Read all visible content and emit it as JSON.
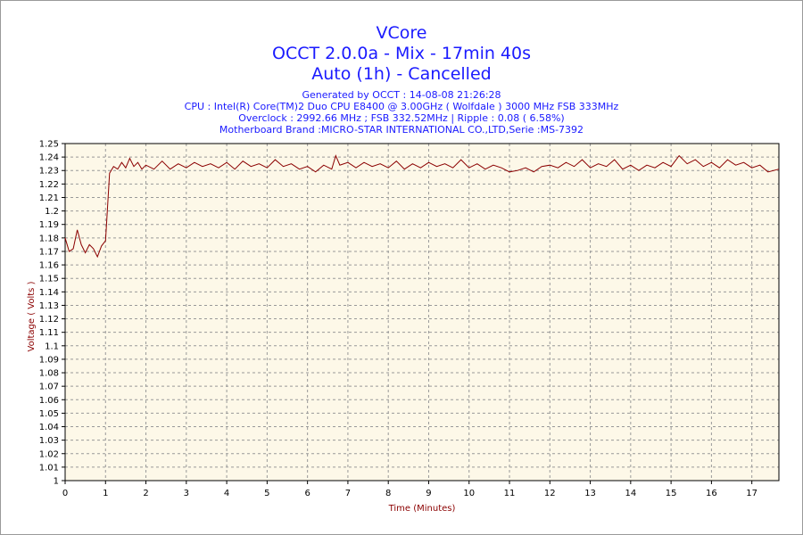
{
  "titles": {
    "line1": "VCore",
    "line2": "OCCT 2.0.0a - Mix - 17min 40s",
    "line3": "Auto (1h) - Cancelled"
  },
  "info": {
    "generated": "Generated by OCCT : 14-08-08 21:26:28",
    "cpu": "CPU : Intel(R) Core(TM)2 Duo CPU E8400 @ 3.00GHz ( Wolfdale ) 3000 MHz FSB 333MHz",
    "overclock": "Overclock : 2992.66 MHz ; FSB 332.52MHz | Ripple : 0.08 ( 6.58%)",
    "motherboard": "Motherboard Brand :MICRO-STAR INTERNATIONAL CO.,LTD,Serie :MS-7392"
  },
  "colors": {
    "plot_bg": "#fdf8e8",
    "line": "#8b0000",
    "grid": "#999999",
    "title": "#1a1aff",
    "axis_title": "#8b0000"
  },
  "chart_data": {
    "type": "line",
    "xlabel": "Time (Minutes)",
    "ylabel": "Voltage ( Volts )",
    "xlim": [
      0,
      17.67
    ],
    "ylim": [
      1,
      1.25
    ],
    "xticks": [
      0,
      1,
      2,
      3,
      4,
      5,
      6,
      7,
      8,
      9,
      10,
      11,
      12,
      13,
      14,
      15,
      16,
      17
    ],
    "yticks": [
      "1",
      "1.01",
      "1.02",
      "1.03",
      "1.04",
      "1.05",
      "1.06",
      "1.07",
      "1.08",
      "1.09",
      "1.1",
      "1.11",
      "1.12",
      "1.13",
      "1.14",
      "1.15",
      "1.16",
      "1.17",
      "1.18",
      "1.19",
      "1.2",
      "1.21",
      "1.22",
      "1.23",
      "1.24",
      "1.25"
    ],
    "grid": true,
    "series": [
      {
        "x": [
          0,
          0.1,
          0.2,
          0.3,
          0.4,
          0.5,
          0.6,
          0.7,
          0.8,
          0.9,
          1.0,
          1.1,
          1.2,
          1.3,
          1.4,
          1.5,
          1.6,
          1.7,
          1.8,
          1.9,
          2.0,
          2.2,
          2.4,
          2.6,
          2.8,
          3.0,
          3.2,
          3.4,
          3.6,
          3.8,
          4.0,
          4.2,
          4.4,
          4.6,
          4.8,
          5.0,
          5.2,
          5.4,
          5.6,
          5.8,
          6.0,
          6.2,
          6.4,
          6.6,
          6.7,
          6.8,
          7.0,
          7.2,
          7.4,
          7.6,
          7.8,
          8.0,
          8.2,
          8.4,
          8.6,
          8.8,
          9.0,
          9.2,
          9.4,
          9.6,
          9.8,
          10.0,
          10.2,
          10.4,
          10.6,
          10.8,
          11.0,
          11.2,
          11.4,
          11.6,
          11.8,
          12.0,
          12.2,
          12.4,
          12.6,
          12.8,
          13.0,
          13.2,
          13.4,
          13.6,
          13.8,
          14.0,
          14.2,
          14.4,
          14.6,
          14.8,
          15.0,
          15.2,
          15.4,
          15.6,
          15.8,
          16.0,
          16.2,
          16.4,
          16.6,
          16.8,
          17.0,
          17.2,
          17.4,
          17.67
        ],
        "y": [
          1.18,
          1.17,
          1.172,
          1.186,
          1.175,
          1.169,
          1.175,
          1.172,
          1.166,
          1.174,
          1.178,
          1.228,
          1.233,
          1.231,
          1.236,
          1.232,
          1.239,
          1.233,
          1.236,
          1.231,
          1.234,
          1.231,
          1.237,
          1.231,
          1.235,
          1.232,
          1.236,
          1.233,
          1.235,
          1.232,
          1.236,
          1.231,
          1.237,
          1.233,
          1.235,
          1.232,
          1.238,
          1.233,
          1.235,
          1.231,
          1.233,
          1.229,
          1.234,
          1.231,
          1.241,
          1.234,
          1.236,
          1.232,
          1.236,
          1.233,
          1.235,
          1.232,
          1.237,
          1.231,
          1.235,
          1.232,
          1.236,
          1.233,
          1.235,
          1.232,
          1.238,
          1.232,
          1.235,
          1.231,
          1.234,
          1.232,
          1.229,
          1.23,
          1.232,
          1.229,
          1.233,
          1.234,
          1.232,
          1.236,
          1.233,
          1.238,
          1.232,
          1.235,
          1.233,
          1.238,
          1.231,
          1.234,
          1.23,
          1.234,
          1.232,
          1.236,
          1.233,
          1.241,
          1.235,
          1.238,
          1.233,
          1.236,
          1.232,
          1.238,
          1.234,
          1.236,
          1.232,
          1.234,
          1.229,
          1.231
        ]
      }
    ]
  }
}
